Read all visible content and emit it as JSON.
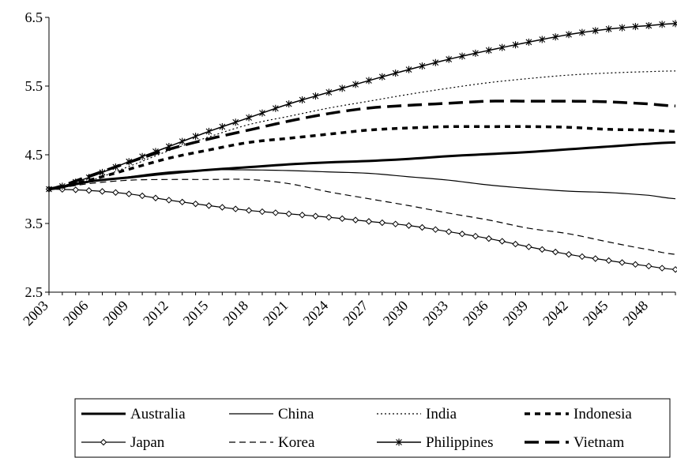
{
  "chart_data": {
    "type": "line",
    "title": "",
    "xlabel": "",
    "ylabel": "",
    "ylim": [
      2.5,
      6.5
    ],
    "y_ticks": [
      "2.5",
      "3.5",
      "4.5",
      "5.5",
      "6.5"
    ],
    "x_range": [
      2003,
      2050
    ],
    "x_tick_labels": [
      "2003",
      "2006",
      "2009",
      "2012",
      "2015",
      "2018",
      "2021",
      "2024",
      "2027",
      "2030",
      "2033",
      "2036",
      "2039",
      "2042",
      "2045",
      "2048"
    ],
    "grid": false,
    "legend_position": "bottom",
    "years": [
      2003,
      2006,
      2009,
      2012,
      2015,
      2018,
      2021,
      2024,
      2027,
      2030,
      2033,
      2036,
      2039,
      2042,
      2045,
      2048,
      2050
    ],
    "series": [
      {
        "name": "Australia",
        "style": "solid-thick",
        "values": [
          4.0,
          4.11,
          4.17,
          4.23,
          4.28,
          4.32,
          4.36,
          4.39,
          4.41,
          4.44,
          4.48,
          4.51,
          4.54,
          4.58,
          4.62,
          4.66,
          4.68
        ]
      },
      {
        "name": "China",
        "style": "solid-thin",
        "values": [
          4.0,
          4.1,
          4.18,
          4.25,
          4.28,
          4.28,
          4.27,
          4.25,
          4.23,
          4.18,
          4.13,
          4.06,
          4.01,
          3.97,
          3.95,
          3.91,
          3.86
        ]
      },
      {
        "name": "India",
        "style": "dotted",
        "values": [
          4.0,
          4.12,
          4.33,
          4.56,
          4.76,
          4.94,
          5.06,
          5.18,
          5.28,
          5.38,
          5.47,
          5.55,
          5.61,
          5.66,
          5.69,
          5.71,
          5.72
        ]
      },
      {
        "name": "Indonesia",
        "style": "dash-thick",
        "values": [
          4.0,
          4.13,
          4.29,
          4.45,
          4.57,
          4.68,
          4.74,
          4.8,
          4.86,
          4.89,
          4.91,
          4.91,
          4.91,
          4.9,
          4.87,
          4.86,
          4.84
        ]
      },
      {
        "name": "Japan",
        "style": "diamond",
        "values": [
          4.0,
          3.98,
          3.93,
          3.84,
          3.76,
          3.69,
          3.64,
          3.59,
          3.53,
          3.47,
          3.38,
          3.28,
          3.16,
          3.05,
          2.96,
          2.88,
          2.83
        ]
      },
      {
        "name": "Korea",
        "style": "dash-thin",
        "values": [
          4.0,
          4.08,
          4.13,
          4.14,
          4.14,
          4.14,
          4.08,
          3.96,
          3.86,
          3.76,
          3.65,
          3.55,
          3.43,
          3.35,
          3.23,
          3.12,
          3.05
        ]
      },
      {
        "name": "Philippines",
        "style": "star",
        "values": [
          4.0,
          4.17,
          4.4,
          4.62,
          4.84,
          5.04,
          5.24,
          5.41,
          5.58,
          5.74,
          5.89,
          6.02,
          6.14,
          6.25,
          6.33,
          6.38,
          6.41
        ]
      },
      {
        "name": "Vietnam",
        "style": "longdash-thick",
        "values": [
          4.0,
          4.19,
          4.39,
          4.58,
          4.73,
          4.86,
          4.99,
          5.1,
          5.18,
          5.22,
          5.25,
          5.28,
          5.28,
          5.28,
          5.27,
          5.24,
          5.21
        ]
      }
    ]
  }
}
